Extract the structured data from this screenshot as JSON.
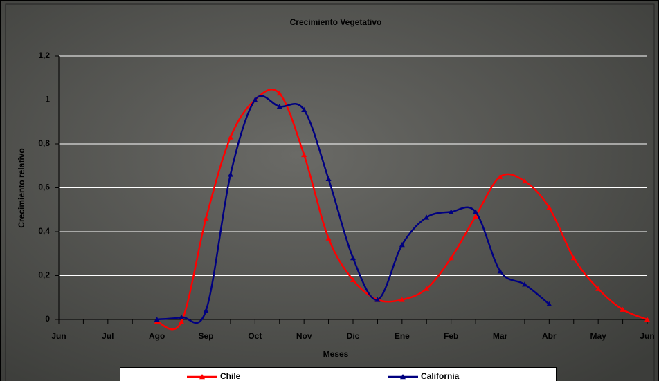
{
  "chart_data": {
    "type": "line",
    "title": "Crecimiento Vegetativo",
    "x_label": "Meses",
    "y_label": "Crecimiento relativo",
    "categories": [
      "Jun",
      null,
      "Jul",
      null,
      "Ago",
      null,
      "Sep",
      null,
      "Oct",
      null,
      "Nov",
      null,
      "Dic",
      null,
      "Ene",
      null,
      "Feb",
      null,
      "Mar",
      null,
      "Abr",
      null,
      "May",
      null,
      "Jun"
    ],
    "series": [
      {
        "name": "Chile",
        "color": "#ff0000",
        "values": [
          null,
          null,
          null,
          null,
          -0.01,
          -0.01,
          0.46,
          0.83,
          1.0,
          1.03,
          0.75,
          0.37,
          0.18,
          0.09,
          0.09,
          0.14,
          0.28,
          0.47,
          0.65,
          0.63,
          0.51,
          0.28,
          0.14,
          0.045,
          0
        ]
      },
      {
        "name": "California",
        "color": "#000080",
        "values": [
          null,
          null,
          null,
          null,
          0,
          0.01,
          0.04,
          0.66,
          1.0,
          0.97,
          0.955,
          0.64,
          0.28,
          0.09,
          0.34,
          0.465,
          0.49,
          0.49,
          0.22,
          0.16,
          0.07,
          null,
          null,
          null,
          null
        ]
      }
    ],
    "ylim": [
      0,
      1.2
    ],
    "yticks": [
      0,
      {
        "value": 0.2,
        "label": "0,2"
      },
      {
        "value": 0.4,
        "label": "0,4"
      },
      {
        "value": 0.6,
        "label": "0,6"
      },
      {
        "value": 0.8,
        "label": "0,8"
      },
      1,
      {
        "value": 1.2,
        "label": "1,2"
      }
    ],
    "grid": true,
    "legend": "bottom"
  }
}
